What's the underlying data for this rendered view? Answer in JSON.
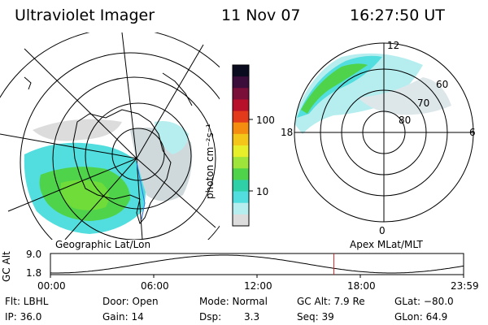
{
  "header": {
    "instrument": "Ultraviolet Imager",
    "date": "11 Nov 07",
    "time": "16:27:50 UT"
  },
  "colorbar": {
    "unit_label": "photon cm⁻²s⁻¹",
    "tick_labels": [
      "100",
      "10"
    ],
    "colors": [
      "#0b0b20",
      "#3a0d3a",
      "#7a0f3a",
      "#b80f2a",
      "#e23a1a",
      "#f48d10",
      "#f5c61a",
      "#e7ee2a",
      "#9fe43a",
      "#4fd34a",
      "#2fcfa8",
      "#52dede",
      "#b6eef0",
      "#dcdcdc"
    ]
  },
  "left_map": {
    "label": "Geographic Lat/Lon"
  },
  "right_map": {
    "label": "Apex MLat/MLT",
    "mlt_labels": {
      "top": "12",
      "left": "18",
      "right": "6",
      "bottom": "0"
    },
    "lat_labels": [
      "60",
      "70",
      "80"
    ]
  },
  "gc_alt_plot": {
    "y_label": "GC Alt",
    "y_ticks": [
      "9.0",
      "1.8"
    ],
    "x_ticks": [
      "00:00",
      "06:00",
      "12:00",
      "18:00",
      "23:59"
    ],
    "current_marker_hour": 16.46
  },
  "status": {
    "flt": "Flt: LBHL",
    "ip": "IP: 36.0",
    "door": "Door: Open",
    "gain": "Gain: 14",
    "mode": "Mode: Normal",
    "dsp_label": "Dsp:",
    "dsp_value": "3.3",
    "gc_alt": "GC Alt: 7.9 Re",
    "seq": "Seq: 39",
    "glat": "GLat: −80.0",
    "glon": "GLon:  64.9"
  }
}
